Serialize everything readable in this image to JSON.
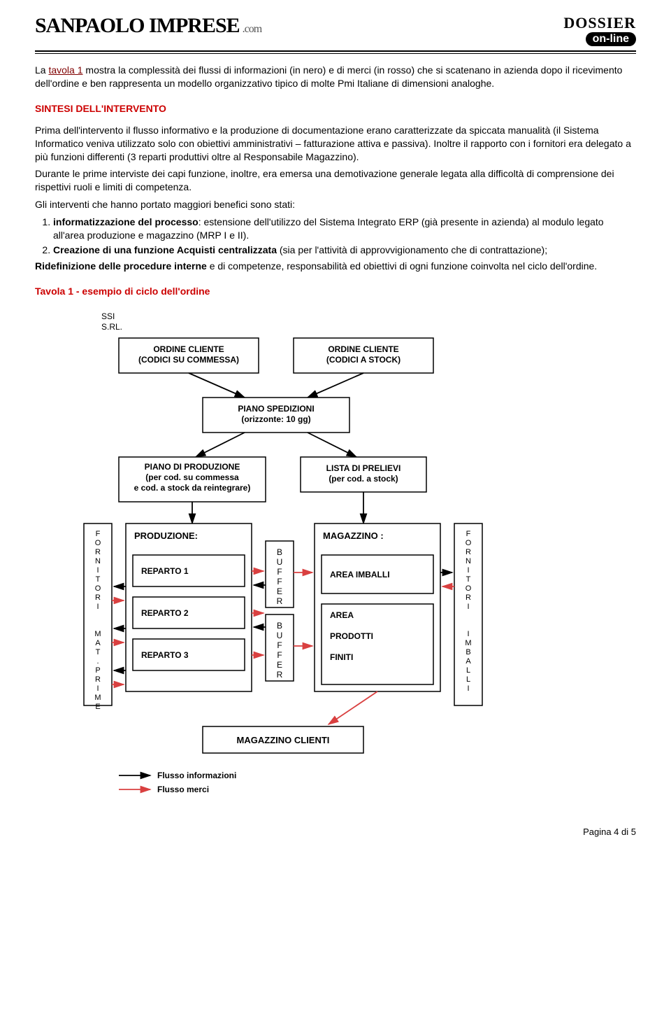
{
  "header": {
    "logo_main": "SANPAOLO IMPRESE",
    "logo_suffix": ".com",
    "dossier": "DOSSIER",
    "online": "on-line"
  },
  "intro": {
    "link_text": "tavola 1",
    "prefix": "La ",
    "after": " mostra la complessità dei flussi di informazioni (in nero) e di merci (in rosso) che si scatenano in azienda dopo il ricevimento dell'ordine e ben rappresenta un modello organizzativo tipico di molte Pmi Italiane di dimensioni analoghe."
  },
  "section1_heading": "SINTESI DELL'INTERVENTO",
  "para1": "Prima dell'intervento il flusso informativo e la produzione di documentazione erano caratterizzate da spiccata manualità (il Sistema Informatico veniva utilizzato solo con obiettivi amministrativi – fatturazione attiva e passiva). Inoltre il rapporto con i fornitori era delegato a più funzioni differenti (3 reparti produttivi oltre al Responsabile Magazzino).",
  "para2": "Durante le prime interviste dei capi funzione, inoltre, era emersa una demotivazione generale legata alla difficoltà di comprensione dei rispettivi ruoli e limiti di competenza.",
  "para3": "Gli interventi che hanno portato maggiori benefici sono stati:",
  "item1_bold": "informatizzazione del processo",
  "item1_rest": ": estensione dell'utilizzo del Sistema Integrato ERP (già presente in azienda) al modulo legato all'area produzione e magazzino (MRP I  e II).",
  "item2_bold": "Creazione di una funzione Acquisti  centralizzata",
  "item2_rest": " (sia per l'attività di approvvigionamento che di contrattazione);",
  "para4_bold": "Ridefinizione delle procedure interne",
  "para4_rest": " e di competenze, responsabilità ed obiettivi di ogni funzione coinvolta nel ciclo dell'ordine.",
  "tavola_heading": "Tavola 1 - esempio di ciclo dell'ordine",
  "diagram": {
    "company": "SSI\nS.RL.",
    "box_ordine_commessa": "ORDINE CLIENTE\n(CODICI  SU COMMESSA)",
    "box_ordine_stock": "ORDINE CLIENTE\n(CODICI  A STOCK)",
    "box_piano_sped": "PIANO SPEDIZIONI\n(orizzonte: 10 gg)",
    "box_piano_prod": "PIANO DI PRODUZIONE\n(per cod. su commessa\ne cod. a stock da reintegrare)",
    "box_lista_prelievi": "LISTA DI PRELIEVI\n(per cod. a stock)",
    "produzione": "PRODUZIONE:",
    "reparto1": "REPARTO 1",
    "reparto2": "REPARTO 2",
    "reparto3": "REPARTO 3",
    "buffer": "BUFFER",
    "magazzino": "MAGAZZINO :",
    "area_imballi": "AREA IMBALLI",
    "area_prodotti": "AREA\n\nPRODOTTI\n\nFINITI",
    "fornitori_mp": "FORNITORI  MAT.PRIME",
    "fornitori_imb": "FORNITORI  IMBALLI",
    "magazzino_clienti": "MAGAZZINO CLIENTI",
    "legend_info": "Flusso informazioni",
    "legend_merci": "Flusso merci",
    "colors": {
      "box_stroke": "#000000",
      "info_arrow": "#000000",
      "merci_arrow": "#d94040",
      "bg": "#ffffff"
    }
  },
  "footer": "Pagina 4 di 5"
}
